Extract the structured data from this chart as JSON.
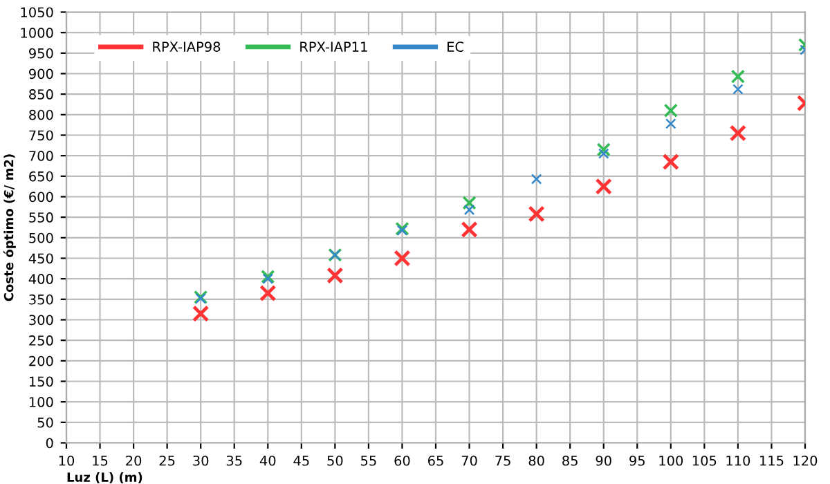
{
  "chart_data": {
    "type": "scatter",
    "xlabel": "Luz (L) (m)",
    "ylabel": "Coste óptimo (€/ m2)",
    "x": [
      30,
      40,
      50,
      60,
      70,
      80,
      90,
      100,
      110,
      120
    ],
    "series": [
      {
        "name": "RPX-IAP98",
        "color": "#ff3333",
        "values": [
          315,
          365,
          408,
          450,
          520,
          558,
          625,
          685,
          755,
          828
        ]
      },
      {
        "name": "RPX-IAP11",
        "color": "#33bb55",
        "values": [
          355,
          405,
          458,
          522,
          585,
          null,
          715,
          810,
          893,
          970
        ]
      },
      {
        "name": "EC",
        "color": "#3388cc",
        "values": [
          352,
          400,
          458,
          518,
          568,
          643,
          705,
          778,
          862,
          958
        ]
      }
    ],
    "xlim": [
      10,
      120
    ],
    "xticks": [
      10,
      15,
      20,
      25,
      30,
      35,
      40,
      45,
      50,
      55,
      60,
      65,
      70,
      75,
      80,
      85,
      90,
      95,
      100,
      105,
      110,
      115,
      120
    ],
    "ylim": [
      0,
      1050
    ],
    "yticks": [
      0,
      50,
      100,
      150,
      200,
      250,
      300,
      350,
      400,
      450,
      500,
      550,
      600,
      650,
      700,
      750,
      800,
      850,
      900,
      950,
      1000,
      1050
    ],
    "grid": true,
    "legend": "top left",
    "marker": "cross"
  }
}
